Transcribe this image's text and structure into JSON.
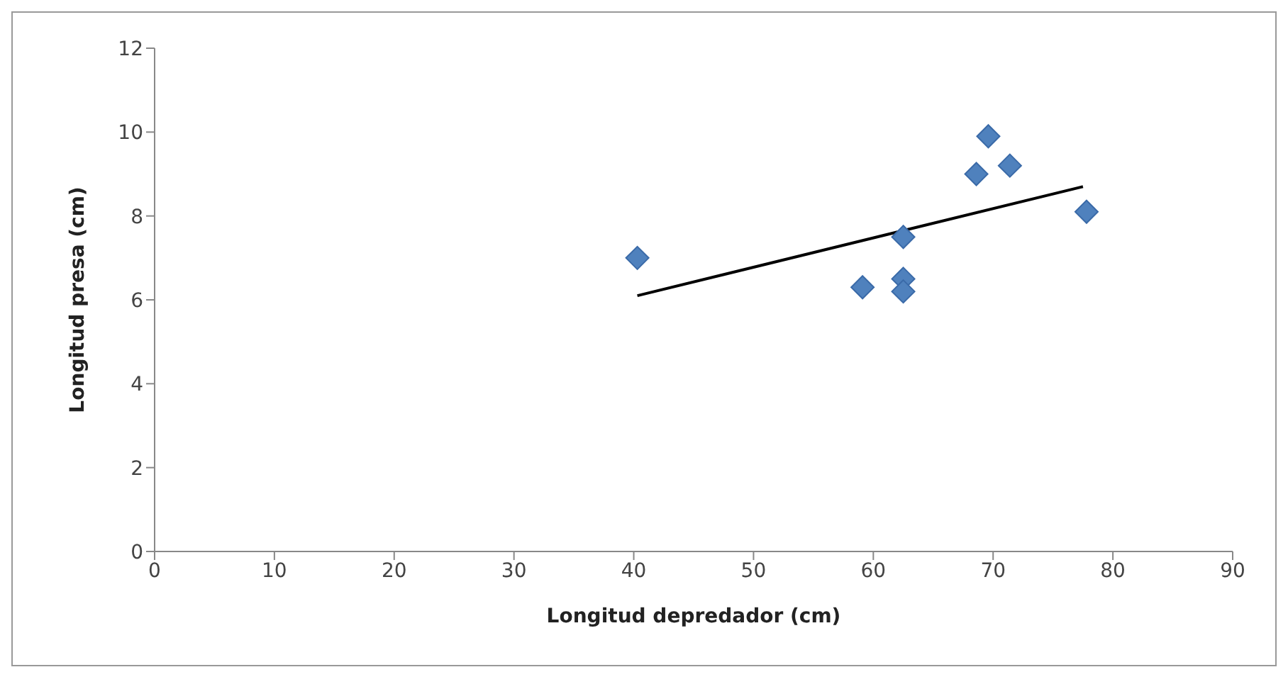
{
  "chart_data": {
    "type": "scatter",
    "xlabel": "Longitud depredador (cm)",
    "ylabel": "Longitud presa (cm)",
    "xlim": [
      0,
      90
    ],
    "xticks": [
      0,
      10,
      20,
      30,
      40,
      50,
      60,
      70,
      80,
      90
    ],
    "ylim": [
      0,
      12
    ],
    "yticks": [
      0,
      2,
      4,
      6,
      8,
      10,
      12
    ],
    "grid": false,
    "legend": false,
    "series": [
      {
        "marker": "diamond",
        "color": "#4f81bd",
        "x": [
          40.3,
          59.1,
          62.5,
          62.5,
          62.5,
          68.6,
          69.6,
          71.4,
          77.8
        ],
        "values": [
          7.0,
          6.3,
          6.5,
          6.2,
          7.5,
          9.0,
          9.9,
          9.2,
          8.1
        ]
      },
      {
        "type": "line",
        "marker": "none",
        "color": "#000000",
        "x": [
          40.3,
          77.5
        ],
        "values": [
          6.1,
          8.7
        ]
      }
    ]
  }
}
